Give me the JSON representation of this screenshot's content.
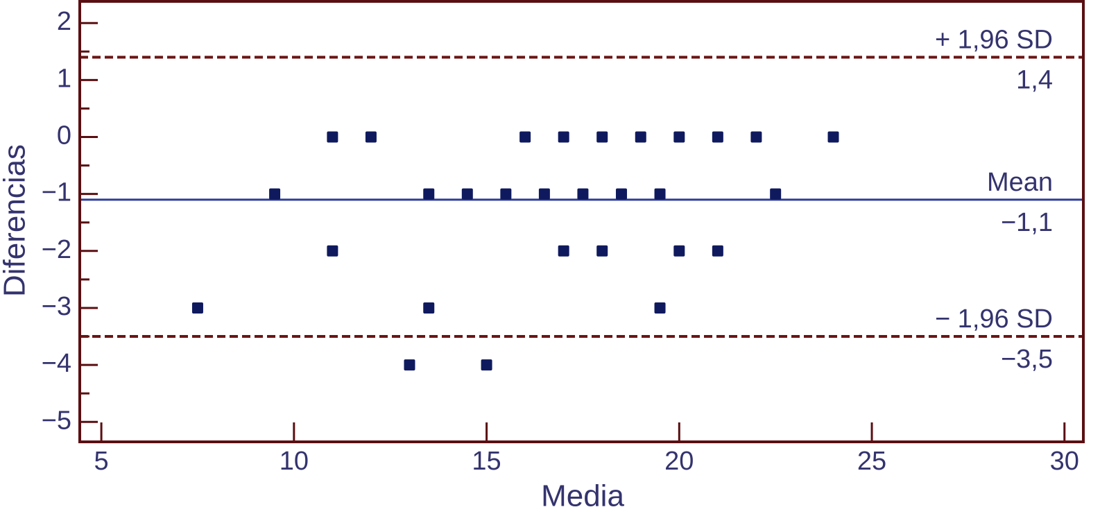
{
  "chart_data": {
    "type": "scatter",
    "x_label": "Media",
    "y_label": "Diferencias",
    "x": [
      11,
      12,
      16,
      17,
      18,
      19,
      20,
      21,
      22,
      24,
      9.5,
      13.5,
      14.5,
      15.5,
      16.5,
      17.5,
      18.5,
      19.5,
      22.5,
      11,
      17,
      18,
      20,
      21,
      7.5,
      13.5,
      19.5,
      13,
      15
    ],
    "values": [
      0,
      0,
      0,
      0,
      0,
      0,
      0,
      0,
      0,
      0,
      -1,
      -1,
      -1,
      -1,
      -1,
      -1,
      -1,
      -1,
      -1,
      -2,
      -2,
      -2,
      -2,
      -2,
      -3,
      -3,
      -3,
      -4,
      -4
    ],
    "color": "#0f1a5e",
    "xlim": [
      4.44,
      30.49
    ],
    "ylim": [
      -5.35,
      2.38
    ],
    "xticks": [
      5,
      10,
      15,
      20,
      25,
      30
    ],
    "yticks": [
      2,
      1,
      0,
      {
        "value": -1,
        "label": "−1"
      },
      {
        "value": -2,
        "label": "−2"
      },
      {
        "value": -3,
        "label": "−3"
      },
      {
        "value": -4,
        "label": "−4"
      },
      {
        "value": -5,
        "label": "−5"
      }
    ],
    "yminorticks": [
      1.5,
      0.5,
      -0.5,
      -1.5,
      -2.5,
      -3.5,
      -4.5
    ],
    "frame_color": "#5a0f12",
    "lines": [
      {
        "name": "+ 1,96 SD",
        "value": 1.4,
        "value_label": "1,4",
        "color": "#6b1414",
        "dashed": true
      },
      {
        "name": "Mean",
        "value": -1.1,
        "value_label": "−1,1",
        "color": "#2d3c99",
        "dashed": false
      },
      {
        "name": "− 1,96 SD",
        "value": -3.5,
        "value_label": "−3,5",
        "color": "#6b1414",
        "dashed": true
      }
    ]
  }
}
